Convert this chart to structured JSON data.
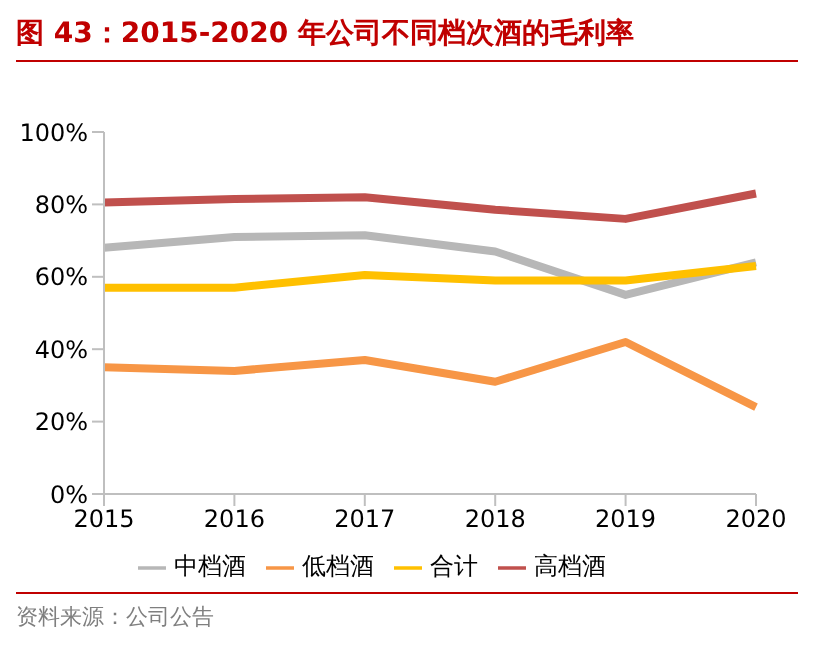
{
  "chart_data": {
    "type": "line",
    "title": "图 43：2015-2020 年公司不同档次酒的毛利率",
    "categories": [
      "2015",
      "2016",
      "2017",
      "2018",
      "2019",
      "2020"
    ],
    "series": [
      {
        "name": "高档酒",
        "color": "#c0504d",
        "values": [
          80.5,
          81.5,
          82,
          78.5,
          76,
          83
        ]
      },
      {
        "name": "中档酒",
        "color": "#b7b7b7",
        "values": [
          68,
          71,
          71.5,
          67,
          55,
          64
        ]
      },
      {
        "name": "低档酒",
        "color": "#f79646",
        "values": [
          35,
          34,
          37,
          31,
          42,
          24
        ]
      },
      {
        "name": "合计",
        "color": "#ffc000",
        "values": [
          57,
          57,
          60.5,
          59,
          59,
          63
        ]
      }
    ],
    "ylim": [
      0,
      100
    ],
    "yticks": [
      {
        "value": 0,
        "label": "0%"
      },
      {
        "value": 20,
        "label": "20%"
      },
      {
        "value": 40,
        "label": "40%"
      },
      {
        "value": 60,
        "label": "60%"
      },
      {
        "value": 80,
        "label": "80%"
      },
      {
        "value": 100,
        "label": "100%"
      }
    ],
    "grid": false,
    "legend": "bottom",
    "marker": "none",
    "line_style": "solid",
    "annotations": [
      "资料来源：公司公告"
    ]
  }
}
